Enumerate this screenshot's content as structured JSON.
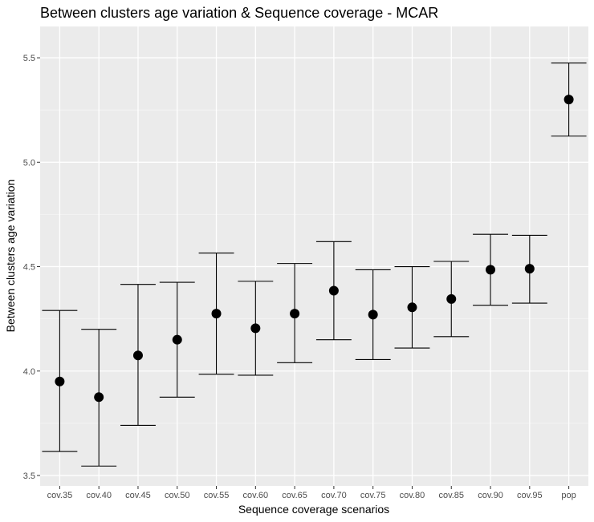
{
  "chart_data": {
    "type": "scatter",
    "title": "Between clusters age variation & Sequence coverage - MCAR",
    "xlabel": "Sequence coverage scenarios",
    "ylabel": "Between clusters age variation",
    "categories": [
      "cov.35",
      "cov.40",
      "cov.45",
      "cov.50",
      "cov.55",
      "cov.60",
      "cov.65",
      "cov.70",
      "cov.75",
      "cov.80",
      "cov.85",
      "cov.90",
      "cov.95",
      "pop"
    ],
    "values": [
      3.95,
      3.875,
      4.075,
      4.15,
      4.275,
      4.205,
      4.275,
      4.385,
      4.27,
      4.305,
      4.345,
      4.485,
      4.49,
      5.3
    ],
    "lower": [
      3.615,
      3.545,
      3.74,
      3.875,
      3.985,
      3.98,
      4.04,
      4.15,
      4.055,
      4.11,
      4.165,
      4.315,
      4.325,
      5.125
    ],
    "upper": [
      4.29,
      4.2,
      4.415,
      4.425,
      4.565,
      4.43,
      4.515,
      4.62,
      4.485,
      4.5,
      4.525,
      4.655,
      4.65,
      5.475
    ],
    "ylim": [
      3.45,
      5.65
    ],
    "yticks": [
      3.5,
      4.0,
      4.5,
      5.0,
      5.5
    ],
    "ytick_labels": [
      "3.5",
      "4.0",
      "4.5",
      "5.0",
      "5.5"
    ],
    "grid": true,
    "colors": {
      "panel_background": "#ebebeb",
      "grid_major": "#ffffff",
      "grid_minor": "#f5f5f5",
      "marker": "#000000",
      "errorbar": "#000000"
    }
  }
}
